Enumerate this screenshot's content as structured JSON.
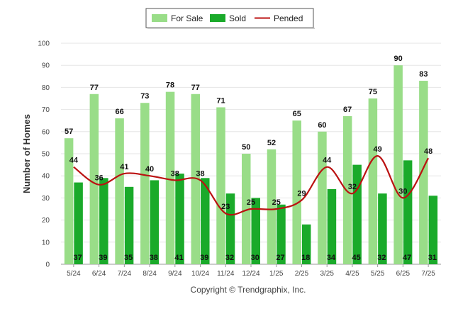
{
  "chart_data": {
    "type": "bar",
    "categories": [
      "5/24",
      "6/24",
      "7/24",
      "8/24",
      "9/24",
      "10/24",
      "11/24",
      "12/24",
      "1/25",
      "2/25",
      "3/25",
      "4/25",
      "5/25",
      "6/25",
      "7/25"
    ],
    "series": [
      {
        "name": "For Sale",
        "type": "bar",
        "color": "#99dd88",
        "values": [
          57,
          77,
          66,
          73,
          78,
          77,
          71,
          50,
          52,
          65,
          60,
          67,
          75,
          90,
          83
        ]
      },
      {
        "name": "Sold",
        "type": "bar",
        "color": "#1aaa2a",
        "values": [
          37,
          39,
          35,
          38,
          41,
          39,
          32,
          30,
          27,
          18,
          34,
          45,
          32,
          47,
          31
        ]
      },
      {
        "name": "Pended",
        "type": "line",
        "color": "#bb1111",
        "values": [
          44,
          36,
          41,
          40,
          38,
          38,
          23,
          25,
          25,
          29,
          44,
          32,
          49,
          30,
          48
        ]
      }
    ],
    "ylabel": "Number of Homes",
    "xlabel": "",
    "ylim": [
      0,
      100
    ],
    "yticks": [
      0,
      10,
      20,
      30,
      40,
      50,
      60,
      70,
      80,
      90,
      100
    ],
    "grid": true,
    "legend_position": "top-center"
  },
  "footer": {
    "copyright": "Copyright © Trendgraphix, Inc."
  }
}
